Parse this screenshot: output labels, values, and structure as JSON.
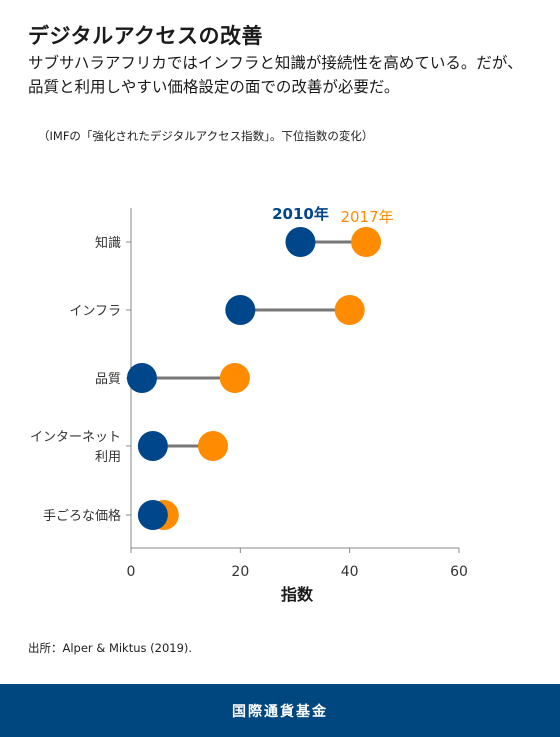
{
  "header": {
    "title": "デジタルアクセスの改善",
    "subtitle": "サブサハラアフリカではインフラと知識が接続性を高めている。だが、品質と利用しやすい価格設定の面での改善が必要だ。",
    "note": "（IMFの「強化されたデジタルアクセス指数」。下位指数の変化）"
  },
  "source": "出所：Alper & Miktus (2019).",
  "footer": {
    "org_name": "国際通貨基金"
  },
  "colors": {
    "series_2010": "#00468b",
    "series_2017": "#ff8c00",
    "connector": "#777777",
    "footer_bg": "#00467f"
  },
  "chart_data": {
    "type": "dumbbell",
    "categories": [
      [
        "知識"
      ],
      [
        "インフラ"
      ],
      [
        "品質"
      ],
      [
        "インターネット",
        "利用"
      ],
      [
        "手ごろな価格"
      ]
    ],
    "series": [
      {
        "name": "2010年",
        "color": "#00468b",
        "values": [
          31,
          20,
          2,
          4,
          4
        ]
      },
      {
        "name": "2017年",
        "color": "#ff8c00",
        "values": [
          43,
          40,
          19,
          15,
          6
        ]
      }
    ],
    "xlabel": "指数",
    "xlim": [
      0,
      60
    ],
    "xticks": [
      0,
      20,
      40,
      60
    ],
    "grid": false
  }
}
